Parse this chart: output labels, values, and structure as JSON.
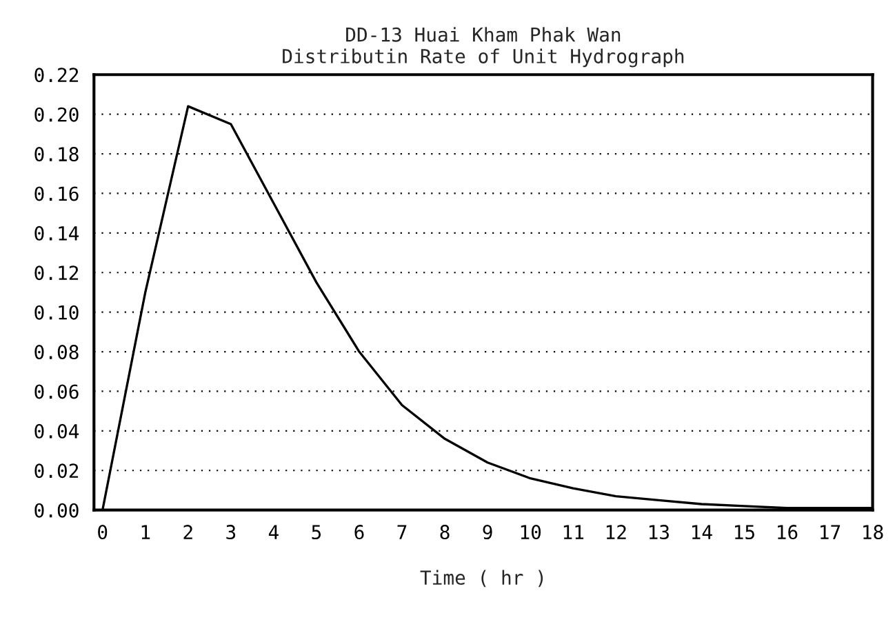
{
  "chart_data": {
    "type": "line",
    "title": "DD-13 Huai Kham Phak Wan\nDistributin Rate of Unit Hydrograph",
    "xlabel": "Time ( hr )",
    "x": [
      0,
      1,
      2,
      3,
      4,
      5,
      6,
      7,
      8,
      9,
      10,
      11,
      12,
      13,
      14,
      15,
      16,
      17,
      18
    ],
    "series": [
      {
        "color": "#000000",
        "values": [
          0.0,
          0.11,
          0.204,
          0.195,
          0.155,
          0.115,
          0.08,
          0.053,
          0.036,
          0.024,
          0.016,
          0.011,
          0.007,
          0.005,
          0.003,
          0.002,
          0.001,
          0.001,
          0.001
        ]
      }
    ],
    "xlim": [
      -0.2,
      18
    ],
    "xticks": [
      0,
      1,
      2,
      3,
      4,
      5,
      6,
      7,
      8,
      9,
      10,
      11,
      12,
      13,
      14,
      15,
      16,
      17,
      18
    ],
    "ylim": [
      0,
      0.22
    ],
    "yticks": [
      {
        "value": 0,
        "label": "0.00"
      },
      {
        "value": 0.02,
        "label": "0.02"
      },
      {
        "value": 0.04,
        "label": "0.04"
      },
      {
        "value": 0.06,
        "label": "0.06"
      },
      {
        "value": 0.08,
        "label": "0.08"
      },
      {
        "value": 0.1,
        "label": "0.10"
      },
      {
        "value": 0.12,
        "label": "0.12"
      },
      {
        "value": 0.14,
        "label": "0.14"
      },
      {
        "value": 0.16,
        "label": "0.16"
      },
      {
        "value": 0.18,
        "label": "0.18"
      },
      {
        "value": 0.2,
        "label": "0.20"
      },
      {
        "value": 0.22,
        "label": "0.22"
      }
    ],
    "grid": "y",
    "marker": "none",
    "line_style": "solid",
    "legend": false
  }
}
